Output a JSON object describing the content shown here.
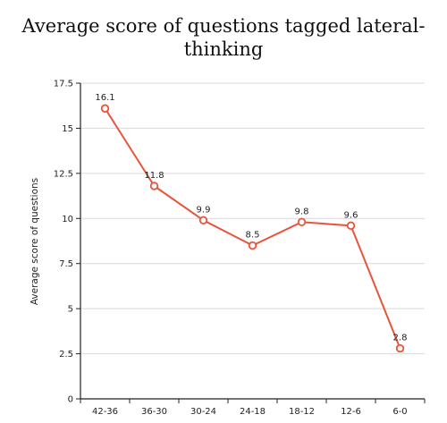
{
  "chart_data": {
    "type": "line",
    "title": "Average score of questions tagged lateral-thinking",
    "xlabel": "",
    "ylabel": "Average score of questions",
    "categories": [
      "42-36",
      "36-30",
      "30-24",
      "24-18",
      "18-12",
      "12-6",
      "6-0"
    ],
    "values": [
      16.1,
      11.8,
      9.9,
      8.5,
      9.8,
      9.6,
      2.8
    ],
    "data_labels": [
      "16.1",
      "11.8",
      "9.9",
      "8.5",
      "9.8",
      "9.6",
      "2.8"
    ],
    "ylim": [
      0,
      17.5
    ],
    "yticks": [
      0,
      2.5,
      5,
      7.5,
      10,
      12.5,
      15,
      17.5
    ],
    "ytick_labels": [
      "0",
      "2.5",
      "5",
      "7.5",
      "10",
      "12.5",
      "15",
      "17.5"
    ],
    "grid": true,
    "legend": "none",
    "colors": {
      "line": "#e8543a",
      "grid": "#d9d9d9",
      "axis": "#222222"
    }
  }
}
